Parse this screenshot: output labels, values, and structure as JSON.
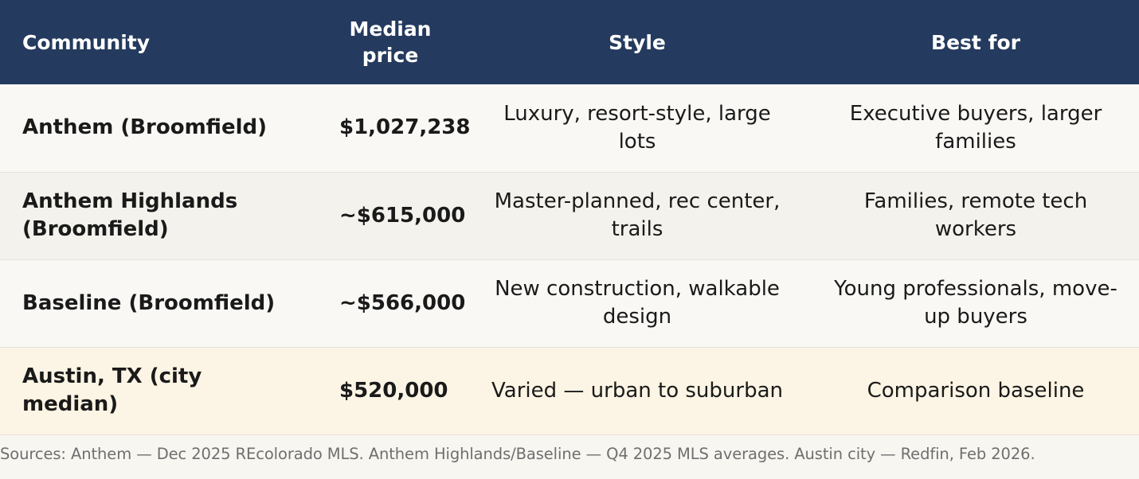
{
  "table": {
    "headers": {
      "community": "Community",
      "median_price": "Median price",
      "style": "Style",
      "best_for": "Best for"
    },
    "rows": [
      {
        "community": "Anthem (Broomfield)",
        "median_price": "$1,027,238",
        "style": "Luxury, resort-style, large lots",
        "best_for": "Executive buyers, larger families"
      },
      {
        "community": "Anthem Highlands (Broomfield)",
        "median_price": "~$615,000",
        "style": "Master-planned, rec center, trails",
        "best_for": "Families, remote tech workers"
      },
      {
        "community": "Baseline (Broomfield)",
        "median_price": "~$566,000",
        "style": "New construction, walkable design",
        "best_for": "Young professionals, move-up buyers"
      },
      {
        "community": "Austin, TX (city median)",
        "median_price": "$520,000",
        "style": "Varied — urban to suburban",
        "best_for": "Comparison baseline"
      }
    ]
  },
  "footnote": "Sources: Anthem — Dec 2025 REcolorado MLS. Anthem Highlands/Baseline — Q4 2025 MLS averages. Austin city — Redfin, Feb 2026.",
  "colors": {
    "header_bg": "#243a5e",
    "highlight_row_bg": "#fcf4e4"
  }
}
